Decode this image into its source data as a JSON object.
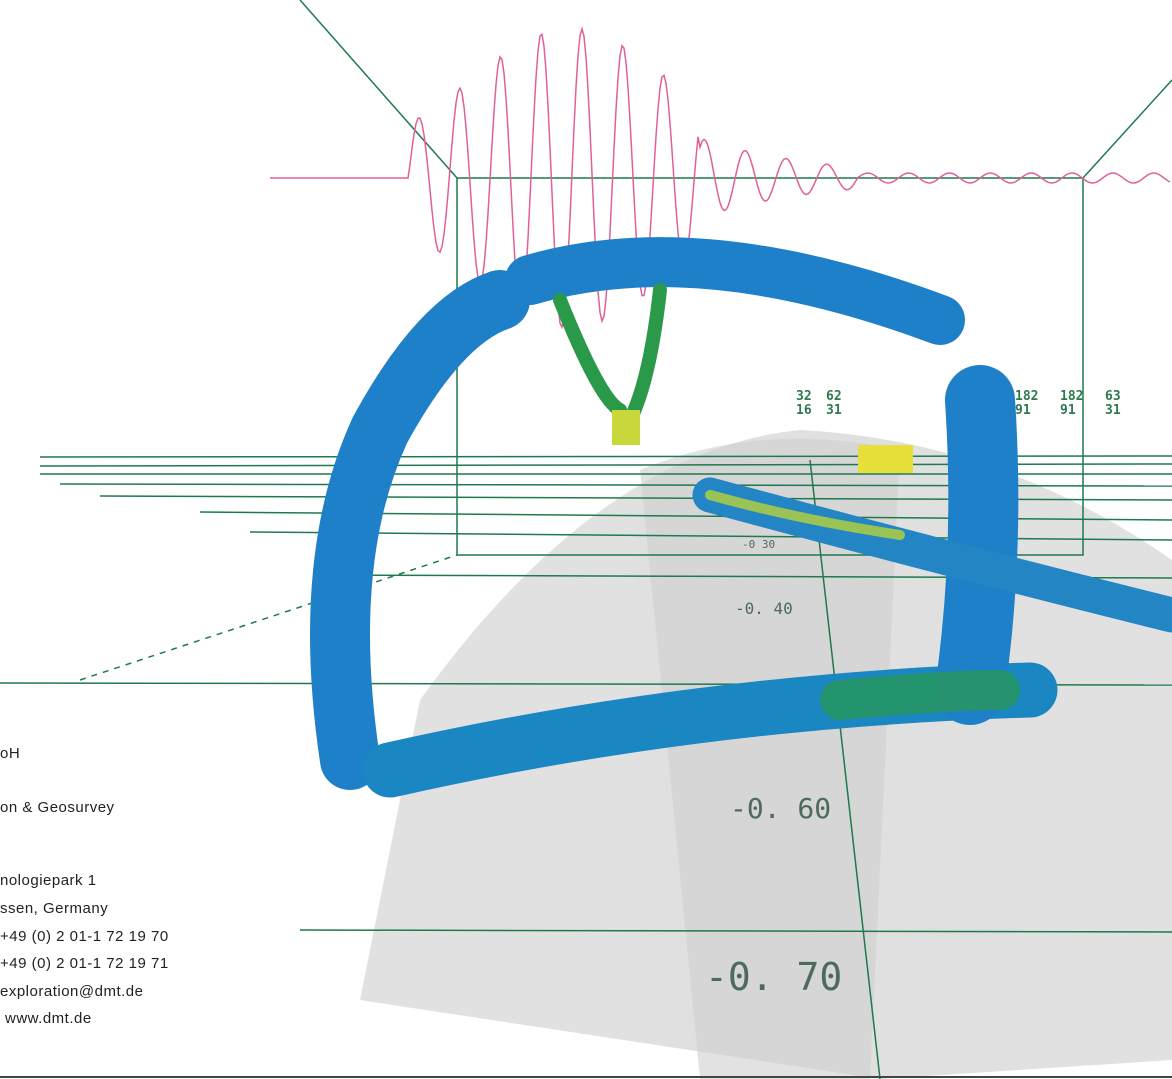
{
  "address_lines": [
    "oH",
    "on & Geosurvey",
    "nologiepark 1",
    "ssen, Germany",
    "+49 (0) 2 01-1 72 19 70",
    "+49 (0) 2 01-1 72 19 71",
    "exploration@dmt.de",
    "www.dmt.de"
  ],
  "depth_labels": [
    "-0 30",
    "-0. 40",
    "-0. 60",
    "-0. 70"
  ],
  "scale_labels_top": [
    "32",
    "62",
    "182",
    "182",
    "63"
  ],
  "scale_labels_bottom": [
    "16",
    "31",
    "91",
    "91",
    "31"
  ]
}
